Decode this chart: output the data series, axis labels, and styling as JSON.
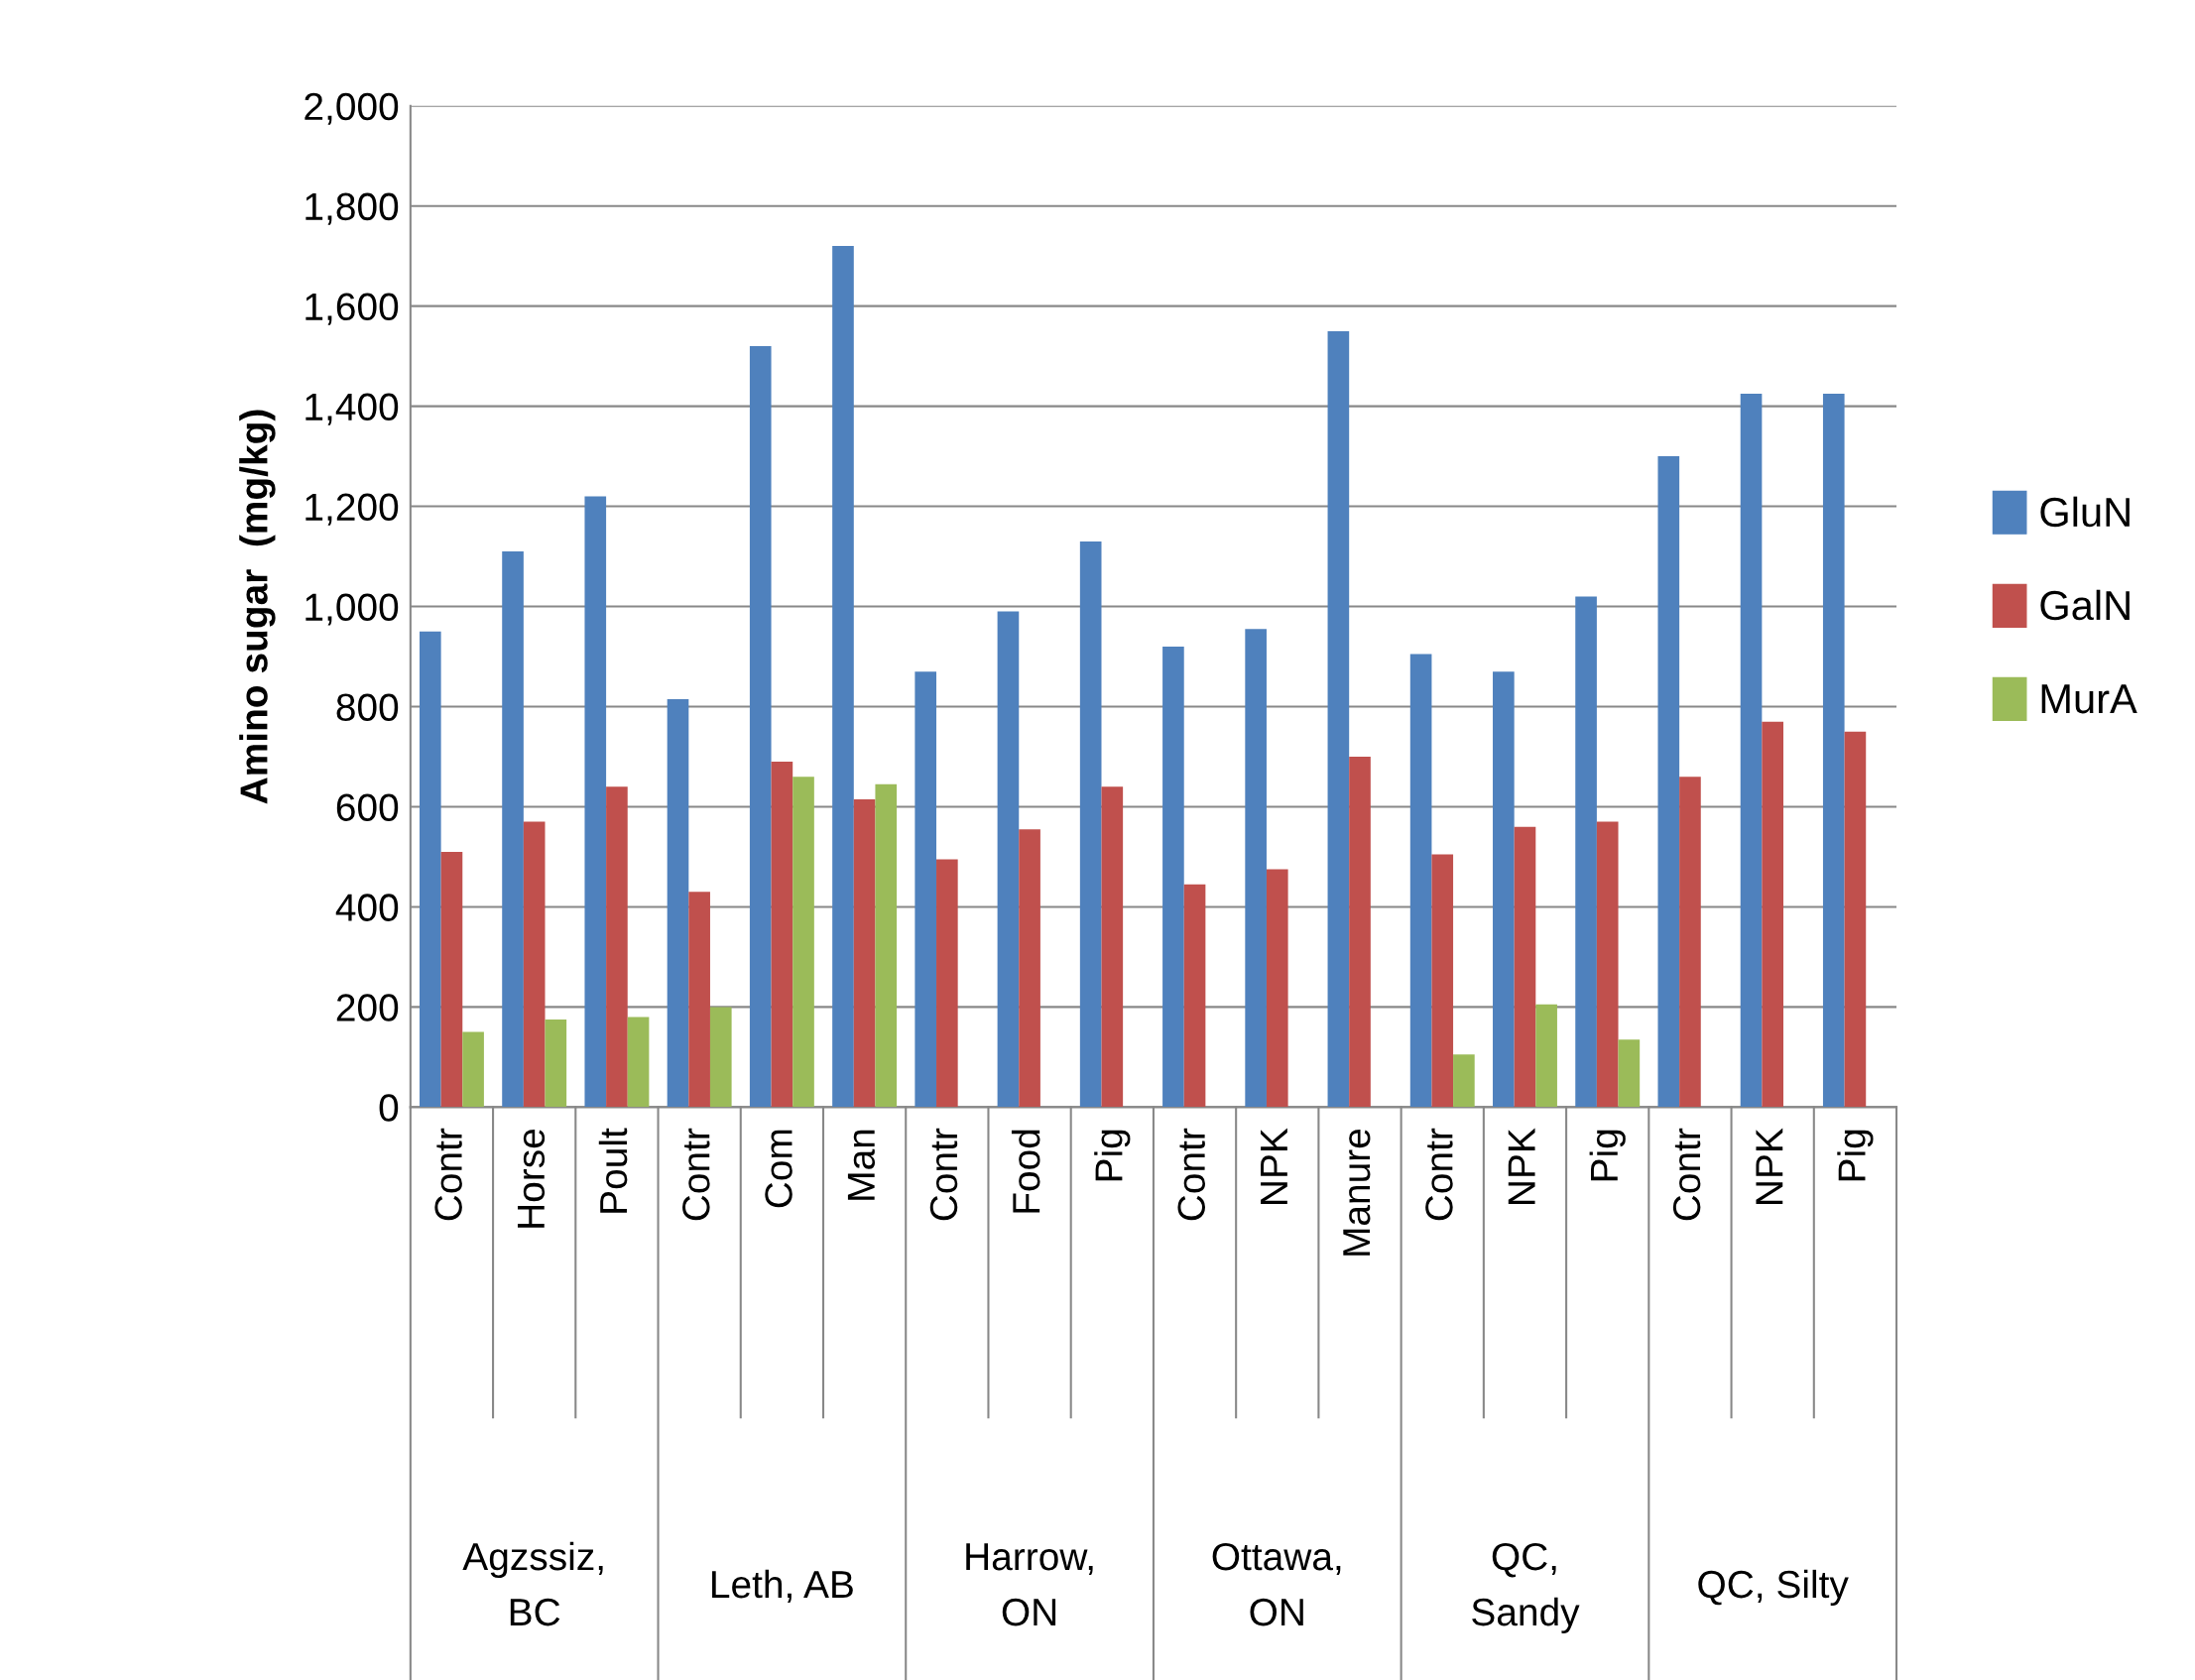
{
  "chart_data": {
    "type": "bar",
    "ylabel": "Amino sugar  (mg/kg)",
    "categories": [
      "Contr",
      "Horse",
      "Poult",
      "Contr",
      "Com",
      "Man",
      "Contr",
      "Food",
      "Pig",
      "Contr",
      "NPK",
      "Manure",
      "Contr",
      "NPK",
      "Pig",
      "Contr",
      "NPK",
      "Pig"
    ],
    "series": [
      {
        "name": "GluN",
        "color": "#4f81bd",
        "values": [
          950,
          1110,
          1220,
          815,
          1520,
          1720,
          870,
          990,
          1130,
          920,
          955,
          1550,
          905,
          870,
          1020,
          1300,
          1425,
          1425
        ]
      },
      {
        "name": "GalN",
        "color": "#c0504d",
        "values": [
          510,
          570,
          640,
          430,
          690,
          615,
          495,
          555,
          640,
          445,
          475,
          700,
          505,
          560,
          570,
          660,
          770,
          750
        ]
      },
      {
        "name": "MurA",
        "color": "#9bbb59",
        "values": [
          150,
          175,
          180,
          200,
          660,
          645,
          null,
          null,
          null,
          null,
          null,
          null,
          105,
          205,
          135,
          null,
          null,
          null
        ]
      }
    ],
    "annotations": [
      "Agzssiz,\nBC",
      "Leth, AB",
      "Harrow,\nON",
      "Ottawa,\nON",
      "QC,\nSandy",
      "QC, Silty"
    ],
    "ylim": [
      0,
      2000
    ],
    "yticks": [
      0,
      200,
      400,
      600,
      800,
      {
        "value": 1000,
        "label": "1,000"
      },
      {
        "value": 1200,
        "label": "1,200"
      },
      {
        "value": 1400,
        "label": "1,400"
      },
      {
        "value": 1600,
        "label": "1,600"
      },
      {
        "value": 1800,
        "label": "1,800"
      },
      {
        "value": 2000,
        "label": "2,000"
      }
    ],
    "grid": "y",
    "legend": "right"
  }
}
